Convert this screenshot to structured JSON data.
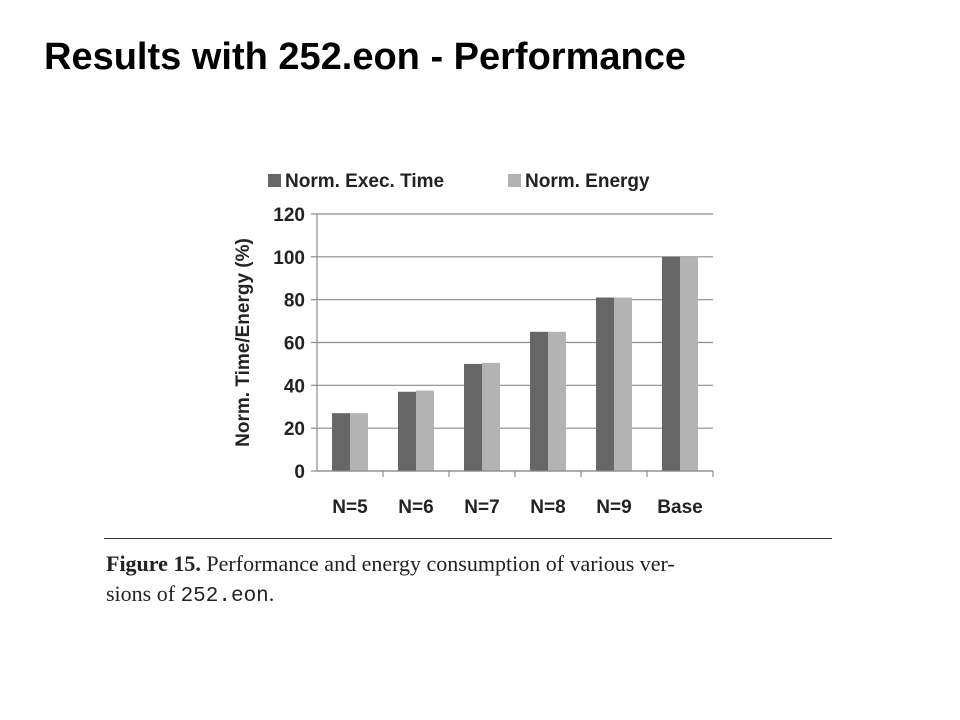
{
  "slide": {
    "title": "Results with 252.eon - Performance"
  },
  "caption": {
    "label": "Figure 15.",
    "text_1": "Performance and energy consumption of various ver-",
    "text_2": "sions of",
    "code": "252.eon",
    "text_3": "."
  },
  "colors": {
    "exec_time": "#666666",
    "energy": "#b3b3b3",
    "grid": "#8c8c8c",
    "text": "#222222"
  },
  "chart_data": {
    "type": "bar",
    "title": "",
    "xlabel": "",
    "ylabel": "Norm. Time/Energy (%)",
    "ylim": [
      0,
      120
    ],
    "yticks": [
      0,
      20,
      40,
      60,
      80,
      100,
      120
    ],
    "grid": true,
    "legend": "top",
    "categories": [
      "N=5",
      "N=6",
      "N=7",
      "N=8",
      "N=9",
      "Base"
    ],
    "series": [
      {
        "name": "Norm. Exec. Time",
        "values": [
          27,
          37,
          50,
          65,
          81,
          100
        ]
      },
      {
        "name": "Norm. Energy",
        "values": [
          27,
          37.5,
          50.5,
          65,
          81,
          100
        ]
      }
    ]
  }
}
